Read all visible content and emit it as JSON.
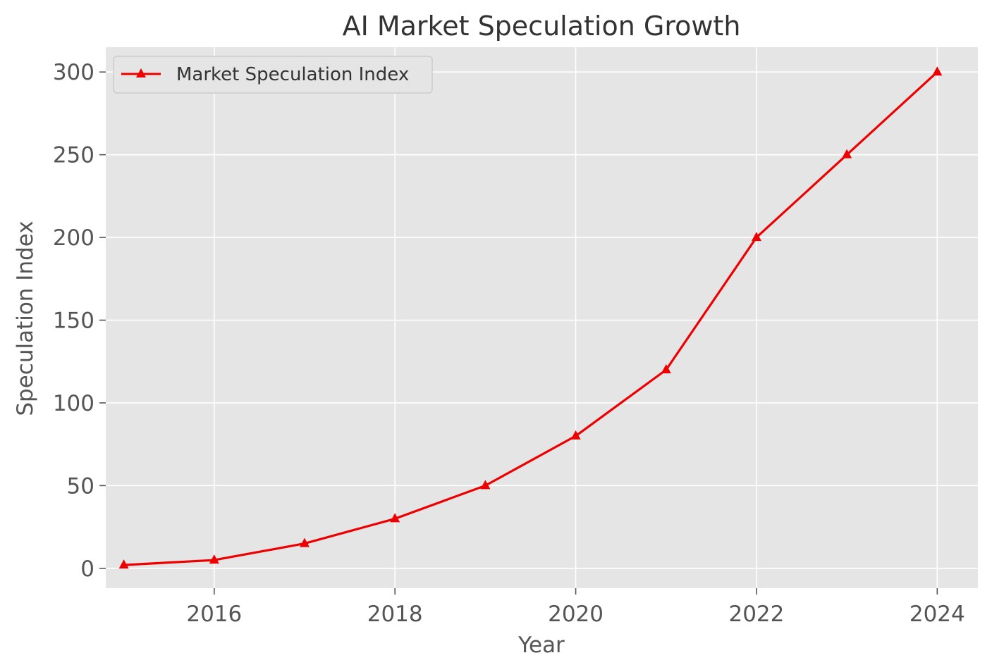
{
  "chart_data": {
    "type": "line",
    "title": "AI Market Speculation Growth",
    "xlabel": "Year",
    "ylabel": "Speculation Index",
    "x": [
      2015,
      2016,
      2017,
      2018,
      2019,
      2020,
      2021,
      2022,
      2023,
      2024
    ],
    "series": [
      {
        "name": "Market Speculation Index",
        "values": [
          2,
          5,
          15,
          30,
          50,
          80,
          120,
          200,
          250,
          300
        ],
        "color": "#ee0000",
        "marker": "triangle"
      }
    ],
    "xticks": [
      2016,
      2018,
      2020,
      2022,
      2024
    ],
    "yticks": [
      0,
      50,
      100,
      150,
      200,
      250,
      300
    ],
    "xlim": [
      2014.8,
      2024.45
    ],
    "ylim": [
      -12,
      315
    ],
    "grid": true,
    "legend_position": "upper-left",
    "background_color": "#e5e5e5",
    "grid_color": "#ffffff"
  }
}
